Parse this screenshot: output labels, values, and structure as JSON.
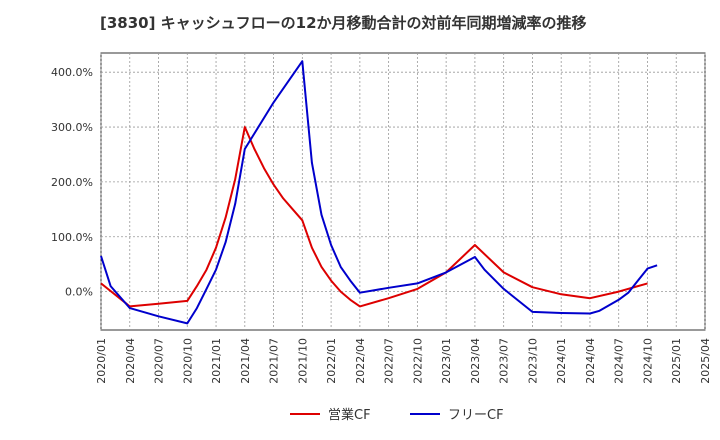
{
  "chart_data": {
    "type": "line",
    "title": "[3830]  キャッシュフローの12か月移動合計の対前年同期増減率の推移",
    "x": [
      "2020/01",
      "2020/04",
      "2020/07",
      "2020/10",
      "2021/01",
      "2021/04",
      "2021/07",
      "2021/10",
      "2022/01",
      "2022/04",
      "2022/07",
      "2022/10",
      "2023/01",
      "2023/04",
      "2023/07",
      "2023/10",
      "2024/01",
      "2024/04",
      "2024/07",
      "2024/10",
      "2025/01",
      "2025/04"
    ],
    "ylim": [
      -70,
      435
    ],
    "yticks": [
      0,
      100,
      200,
      300,
      400
    ],
    "ytick_labels": [
      "0.0%",
      "100.0%",
      "200.0%",
      "300.0%",
      "400.0%"
    ],
    "grid": true,
    "legend_position": "bottom",
    "series": [
      {
        "name": "営業CF",
        "color": "#dd0000",
        "points": [
          [
            "2020/01",
            15
          ],
          [
            "2020/04",
            -27
          ],
          [
            "2020/07",
            -22
          ],
          [
            "2020/10",
            -17
          ],
          [
            "2020/11",
            10
          ],
          [
            "2020/12",
            40
          ],
          [
            "2021/01",
            80
          ],
          [
            "2021/02",
            135
          ],
          [
            "2021/03",
            205
          ],
          [
            "2021/04",
            300
          ],
          [
            "2021/05",
            260
          ],
          [
            "2021/06",
            225
          ],
          [
            "2021/07",
            195
          ],
          [
            "2021/08",
            170
          ],
          [
            "2021/09",
            150
          ],
          [
            "2021/10",
            130
          ],
          [
            "2021/11",
            80
          ],
          [
            "2021/12",
            45
          ],
          [
            "2022/01",
            20
          ],
          [
            "2022/02",
            0
          ],
          [
            "2022/03",
            -15
          ],
          [
            "2022/04",
            -27
          ],
          [
            "2022/07",
            -12
          ],
          [
            "2022/10",
            5
          ],
          [
            "2023/01",
            35
          ],
          [
            "2023/04",
            85
          ],
          [
            "2023/07",
            35
          ],
          [
            "2023/10",
            8
          ],
          [
            "2024/01",
            -5
          ],
          [
            "2024/04",
            -12
          ],
          [
            "2024/07",
            0
          ],
          [
            "2024/10",
            15
          ]
        ]
      },
      {
        "name": "フリーCF",
        "color": "#0000cc",
        "points": [
          [
            "2020/01",
            65
          ],
          [
            "2020/02",
            10
          ],
          [
            "2020/04",
            -30
          ],
          [
            "2020/07",
            -45
          ],
          [
            "2020/10",
            -58
          ],
          [
            "2020/11",
            -30
          ],
          [
            "2020/12",
            5
          ],
          [
            "2021/01",
            40
          ],
          [
            "2021/02",
            90
          ],
          [
            "2021/03",
            160
          ],
          [
            "2021/04",
            260
          ],
          [
            "2021/07",
            345
          ],
          [
            "2021/10",
            420
          ],
          [
            "2021/11",
            235
          ],
          [
            "2021/12",
            140
          ],
          [
            "2022/01",
            85
          ],
          [
            "2022/02",
            45
          ],
          [
            "2022/03",
            20
          ],
          [
            "2022/04",
            -2
          ],
          [
            "2022/07",
            7
          ],
          [
            "2022/10",
            15
          ],
          [
            "2023/01",
            35
          ],
          [
            "2023/04",
            63
          ],
          [
            "2023/05",
            40
          ],
          [
            "2023/07",
            5
          ],
          [
            "2023/10",
            -37
          ],
          [
            "2024/01",
            -39
          ],
          [
            "2024/04",
            -40
          ],
          [
            "2024/05",
            -35
          ],
          [
            "2024/07",
            -15
          ],
          [
            "2024/08",
            -2
          ],
          [
            "2024/09",
            20
          ],
          [
            "2024/10",
            42
          ],
          [
            "2024/11",
            48
          ]
        ]
      }
    ]
  }
}
